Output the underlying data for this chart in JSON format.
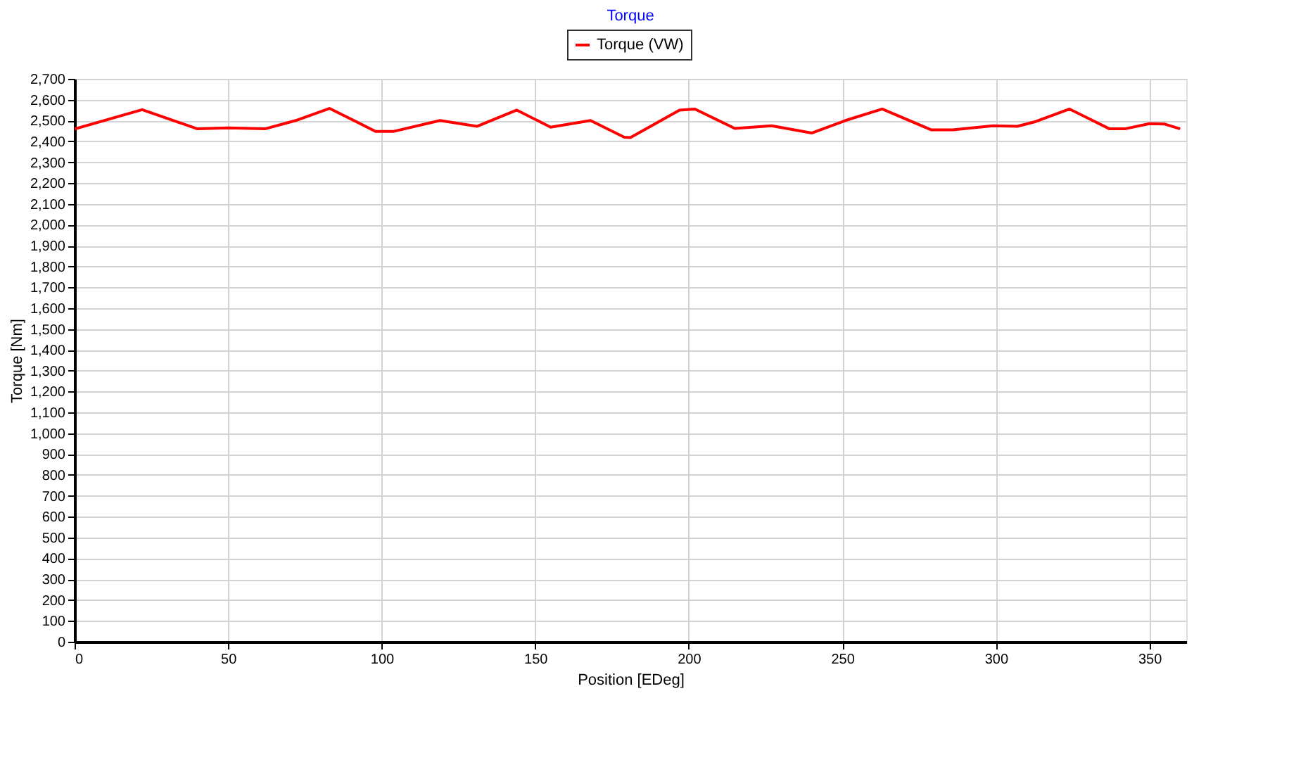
{
  "chart_data": {
    "type": "line",
    "title": "Torque",
    "xlabel": "Position [EDeg]",
    "ylabel": "Torque [Nm]",
    "xlim": [
      0,
      362
    ],
    "xticks": [
      0,
      50,
      100,
      150,
      200,
      250,
      300,
      350
    ],
    "ylim": [
      0,
      2700
    ],
    "yticks": [
      0,
      100,
      200,
      300,
      400,
      500,
      600,
      700,
      800,
      900,
      {
        "value": 1000,
        "label": "1,000"
      },
      {
        "value": 1100,
        "label": "1,100"
      },
      {
        "value": 1200,
        "label": "1,200"
      },
      {
        "value": 1300,
        "label": "1,300"
      },
      {
        "value": 1400,
        "label": "1,400"
      },
      {
        "value": 1500,
        "label": "1,500"
      },
      {
        "value": 1600,
        "label": "1,600"
      },
      {
        "value": 1700,
        "label": "1,700"
      },
      {
        "value": 1800,
        "label": "1,800"
      },
      {
        "value": 1900,
        "label": "1,900"
      },
      {
        "value": 2000,
        "label": "2,000"
      },
      {
        "value": 2100,
        "label": "2,100"
      },
      {
        "value": 2200,
        "label": "2,200"
      },
      {
        "value": 2300,
        "label": "2,300"
      },
      {
        "value": 2400,
        "label": "2,400"
      },
      {
        "value": 2500,
        "label": "2,500"
      },
      {
        "value": 2600,
        "label": "2,600"
      },
      {
        "value": 2700,
        "label": "2,700"
      }
    ],
    "grid": true,
    "legend": "top",
    "marker": "none",
    "line_style": "solid",
    "series": [
      {
        "name": "Torque (VW)",
        "color": "#ff0000",
        "x": [
          0,
          22,
          40,
          50,
          62,
          72,
          83,
          98,
          104,
          119,
          131,
          144,
          155,
          168,
          179,
          181,
          197,
          202,
          215,
          227,
          240,
          251,
          263,
          279,
          286,
          299,
          307,
          313,
          324,
          337,
          342,
          350,
          355,
          360
        ],
        "values": [
          2459,
          2552,
          2460,
          2465,
          2460,
          2500,
          2558,
          2448,
          2448,
          2500,
          2472,
          2550,
          2468,
          2500,
          2420,
          2418,
          2550,
          2555,
          2462,
          2475,
          2440,
          2500,
          2555,
          2455,
          2455,
          2475,
          2472,
          2495,
          2555,
          2460,
          2460,
          2485,
          2483,
          2460
        ]
      }
    ]
  }
}
